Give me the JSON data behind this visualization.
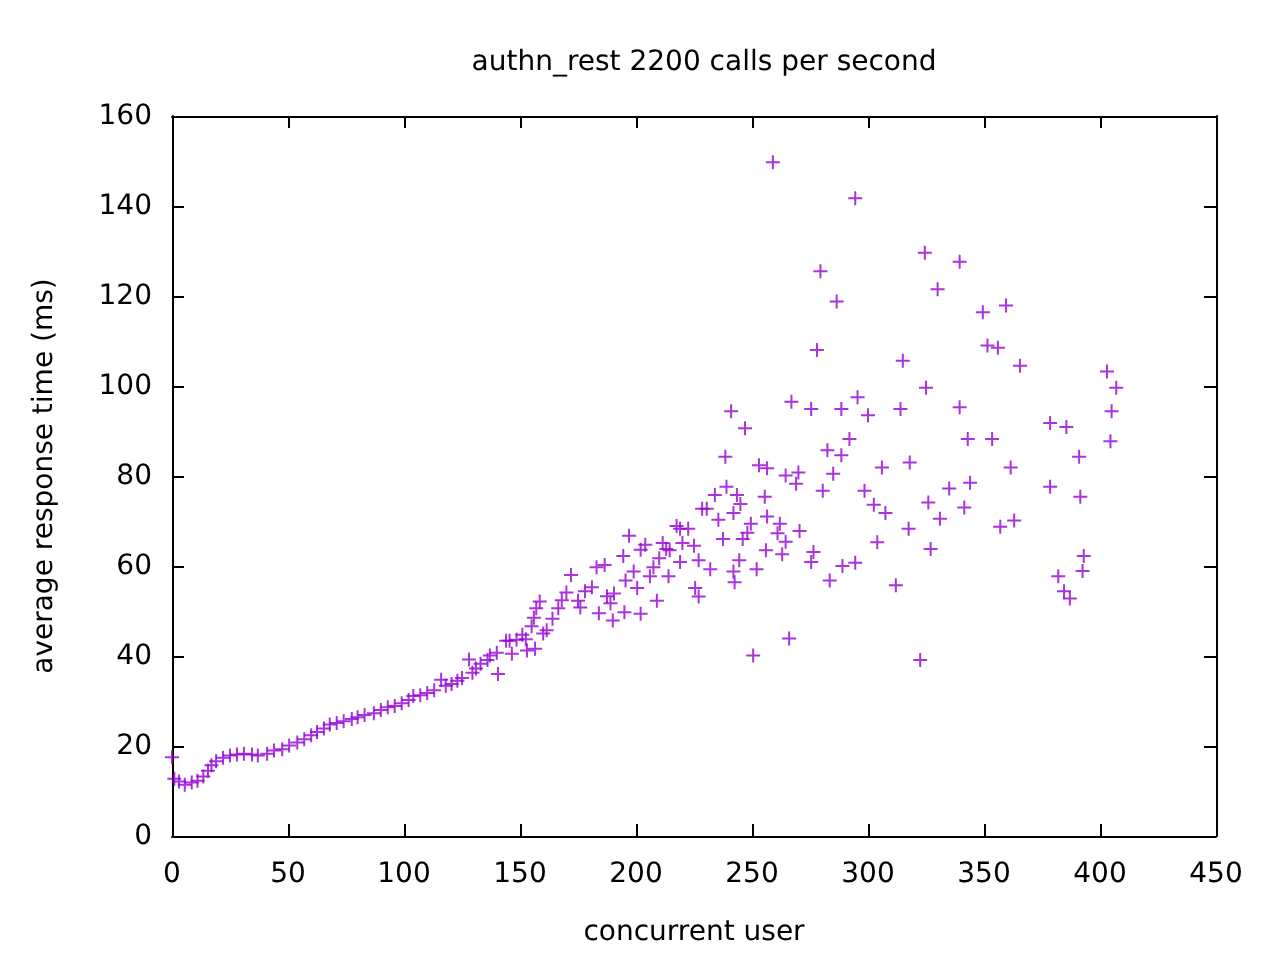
{
  "chart_data": {
    "type": "scatter",
    "title": "authn_rest 2200 calls per second",
    "xlabel": "concurrent user",
    "ylabel": "average response time (ms)",
    "color": "#9400d3",
    "marker": "cross",
    "grid": false,
    "xlim": [
      0,
      450
    ],
    "xticks": [
      0,
      50,
      100,
      150,
      200,
      250,
      300,
      350,
      400,
      450
    ],
    "ylim": [
      0,
      160
    ],
    "yticks": [
      0,
      20,
      40,
      60,
      80,
      100,
      120,
      140,
      160
    ],
    "x": [
      0,
      1,
      3,
      5.5,
      8.5,
      11,
      13.5,
      15.5,
      17,
      19,
      22,
      25,
      28,
      31,
      34.5,
      37,
      41,
      44,
      47.5,
      50.5,
      54,
      57,
      60,
      62.5,
      65.5,
      68,
      71,
      74,
      77.5,
      80,
      83,
      87,
      90,
      93,
      96,
      99,
      102,
      104,
      107,
      110,
      113,
      116,
      118,
      120.5,
      123,
      125,
      128,
      129.5,
      131,
      133,
      136,
      137,
      140,
      140.5,
      144,
      145.5,
      146.5,
      148.5,
      151,
      152.5,
      153,
      155,
      156,
      156.5,
      157,
      158.5,
      160,
      161.5,
      164,
      166.5,
      168,
      170,
      172,
      175,
      176,
      178,
      181,
      183,
      184,
      186.5,
      187.5,
      189,
      190.5,
      190,
      194.5,
      195,
      195.5,
      197,
      199,
      200.5,
      202,
      202,
      204,
      206,
      207.5,
      209,
      210,
      211.5,
      213,
      214,
      214.5,
      217.5,
      219,
      219,
      220,
      222.5,
      225,
      225.5,
      227,
      227,
      228.5,
      230.5,
      232,
      234,
      235.5,
      237.5,
      238.5,
      239,
      241,
      242,
      242.5,
      242,
      243.5,
      244.5,
      245,
      246,
      247,
      248,
      249.5,
      250.5,
      252,
      253,
      255.5,
      256,
      256.5,
      256.5,
      259,
      261,
      262,
      263,
      264.5,
      264.5,
      266,
      267,
      269,
      270,
      270.5,
      275.5,
      275.5,
      276.5,
      278,
      279.5,
      280.5,
      282.5,
      283.5,
      285,
      286.5,
      288.5,
      288.5,
      289,
      292,
      294.5,
      294.5,
      295.5,
      298.5,
      300,
      302.5,
      304,
      306,
      307.5,
      312,
      314,
      315,
      317.5,
      318,
      322.5,
      324.5,
      325,
      326,
      327,
      330,
      331,
      335,
      339.5,
      339.5,
      341.5,
      343,
      344,
      349.5,
      351.5,
      353.5,
      356,
      357,
      359.5,
      361.5,
      363,
      365.5,
      378.5,
      378.5,
      382,
      384.5,
      385.5,
      387,
      391,
      391.5,
      392.5,
      393,
      403,
      404.5,
      405,
      407
    ],
    "values": [
      17.5,
      12.7,
      12.1,
      11.4,
      11.9,
      12.3,
      13.2,
      14.5,
      15.7,
      16.6,
      17.4,
      17.9,
      18.1,
      18.3,
      18.1,
      17.9,
      18.3,
      19,
      19.3,
      20.1,
      20.8,
      21.5,
      22.4,
      23.1,
      23.9,
      24.8,
      25.1,
      25.5,
      26,
      26.4,
      26.9,
      27.3,
      28,
      28.6,
      28.9,
      29.5,
      30.2,
      31.1,
      31.3,
      31.8,
      32.4,
      34.7,
      33.4,
      33.8,
      34.5,
      35.1,
      39.2,
      36.3,
      37.2,
      38.3,
      39.1,
      40.1,
      40.7,
      36,
      43.4,
      43.4,
      40.5,
      43.6,
      44.7,
      43.7,
      41.2,
      46.6,
      48.5,
      41.6,
      50.6,
      52.1,
      45,
      45.7,
      48.3,
      50.6,
      52.4,
      54.1,
      58,
      52.3,
      50.8,
      54.4,
      55.3,
      59.7,
      49.5,
      60.2,
      53.3,
      51.7,
      53.9,
      47.9,
      62.2,
      49.7,
      56.8,
      66.7,
      58.8,
      55.1,
      49.4,
      63.6,
      64.7,
      57.7,
      59.7,
      52.3,
      61.7,
      65.1,
      63.8,
      57.7,
      63.5,
      68.9,
      60.9,
      68.3,
      65.1,
      68.3,
      64.5,
      55.1,
      53.2,
      61.3,
      72.7,
      72.7,
      59.3,
      75.8,
      70.3,
      66,
      84.3,
      77.6,
      94.4,
      71.8,
      56.4,
      58.8,
      75.8,
      61.3,
      73.8,
      66,
      90.6,
      67.4,
      69.4,
      40.1,
      59.3,
      82.4,
      75.4,
      63.5,
      81.7,
      71,
      149.7,
      67.3,
      69.4,
      62.6,
      80.1,
      65.4,
      43.9,
      96.5,
      78.3,
      80.8,
      67.8,
      94.9,
      60.9,
      63.1,
      108,
      125.5,
      76.7,
      85.7,
      56.8,
      80.5,
      118.8,
      84.6,
      94.9,
      60,
      88.2,
      60.7,
      141.7,
      97.5,
      76.7,
      93.5,
      73.6,
      65.3,
      81.9,
      71.8,
      55.7,
      94.9,
      105.6,
      68.3,
      83,
      39.1,
      129.6,
      99.6,
      74.1,
      63.8,
      121.5,
      70.5,
      77.2,
      95.3,
      127.6,
      73,
      88.2,
      78.5,
      116.4,
      109,
      88.2,
      108.5,
      68.7,
      117.9,
      81.9,
      70.1,
      104.5,
      77.6,
      91.8,
      57.7,
      54.4,
      90.9,
      52.8,
      84.3,
      75.4,
      58.9,
      62.2,
      103.2,
      87.7,
      94.4,
      99.6
    ]
  }
}
